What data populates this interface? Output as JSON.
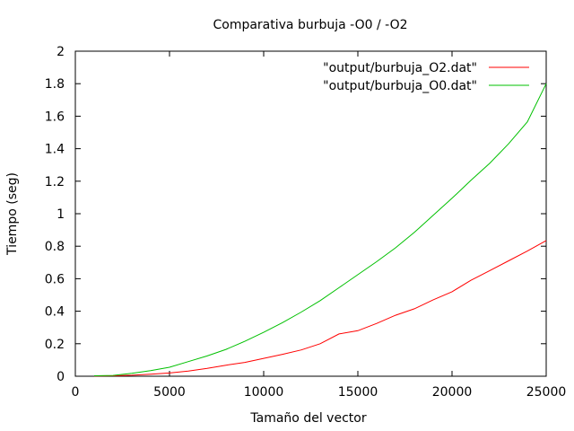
{
  "chart_data": {
    "type": "line",
    "title": "Comparativa burbuja -O0 / -O2",
    "xlabel": "Tamaño del vector",
    "ylabel": "Tiempo (seg)",
    "xlim": [
      0,
      25000
    ],
    "ylim": [
      0,
      2
    ],
    "xticks": [
      0,
      5000,
      10000,
      15000,
      20000,
      25000
    ],
    "xtick_labels": [
      "0",
      "5000",
      "10000",
      "15000",
      "20000",
      "25000"
    ],
    "yticks": [
      0,
      0.2,
      0.4,
      0.6,
      0.8,
      1,
      1.2,
      1.4,
      1.6,
      1.8,
      2
    ],
    "ytick_labels": [
      "0",
      "0.2",
      "0.4",
      "0.6",
      "0.8",
      "1",
      "1.2",
      "1.4",
      "1.6",
      "1.8",
      "2"
    ],
    "grid": false,
    "legend_position": "top-right",
    "series": [
      {
        "name": "\"output/burbuja_O2.dat\"",
        "color": "#ff0000",
        "x": [
          1000,
          2000,
          3000,
          4000,
          5000,
          6000,
          7000,
          8000,
          9000,
          10000,
          11000,
          12000,
          13000,
          14000,
          15000,
          16000,
          17000,
          18000,
          19000,
          20000,
          21000,
          22000,
          23000,
          24000,
          25000
        ],
        "y": [
          0.001,
          0.003,
          0.006,
          0.012,
          0.02,
          0.032,
          0.048,
          0.068,
          0.085,
          0.11,
          0.135,
          0.162,
          0.2,
          0.26,
          0.28,
          0.325,
          0.375,
          0.415,
          0.47,
          0.52,
          0.59,
          0.65,
          0.71,
          0.77,
          0.835
        ]
      },
      {
        "name": "\"output/burbuja_O0.dat\"",
        "color": "#00c000",
        "x": [
          1000,
          2000,
          3000,
          4000,
          5000,
          6000,
          7000,
          8000,
          9000,
          10000,
          11000,
          12000,
          13000,
          14000,
          15000,
          16000,
          17000,
          18000,
          19000,
          20000,
          21000,
          22000,
          23000,
          24000,
          25000
        ],
        "y": [
          0.003,
          0.005,
          0.018,
          0.035,
          0.055,
          0.09,
          0.125,
          0.165,
          0.215,
          0.27,
          0.33,
          0.395,
          0.465,
          0.545,
          0.625,
          0.705,
          0.79,
          0.885,
          0.99,
          1.095,
          1.205,
          1.31,
          1.43,
          1.565,
          1.8
        ]
      }
    ]
  }
}
